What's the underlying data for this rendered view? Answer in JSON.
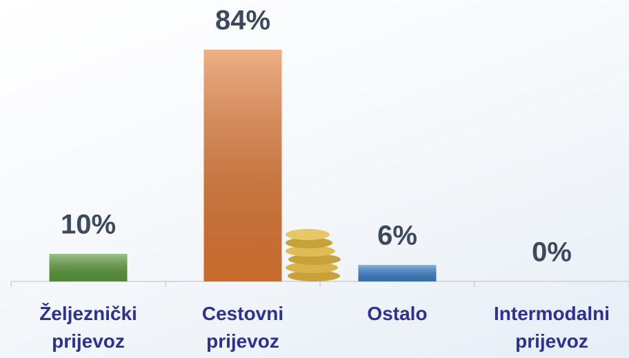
{
  "chart_data": {
    "type": "bar",
    "categories": [
      "Željeznički prijevoz",
      "Cestovni prijevoz",
      "Ostalo",
      "Intermodalni prijevoz"
    ],
    "values": [
      10,
      84,
      6,
      0
    ],
    "value_labels": [
      "10%",
      "84%",
      "6%",
      "0%"
    ],
    "colors": [
      "#5a9a38",
      "#e47a35",
      "#3a80c8",
      "#3a80c8"
    ]
  }
}
